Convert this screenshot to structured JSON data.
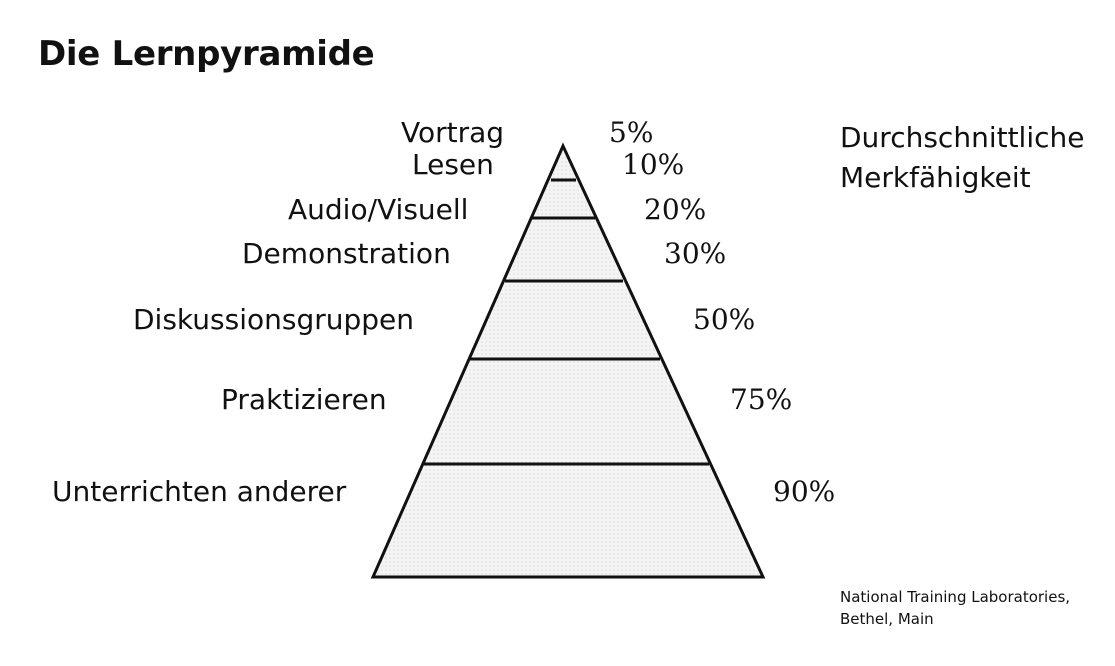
{
  "title": "Die Lernpyramide",
  "legend_heading": [
    "Durchschnittliche",
    "Merkfähigkeit"
  ],
  "source": [
    "National Training Laboratories,",
    "Bethel, Main"
  ],
  "levels": [
    {
      "label": "Vortrag",
      "value": "5%"
    },
    {
      "label": "Lesen",
      "value": "10%"
    },
    {
      "label": "Audio/Visuell",
      "value": "20%"
    },
    {
      "label": "Demonstration",
      "value": "30%"
    },
    {
      "label": "Diskussionsgruppen",
      "value": "50%"
    },
    {
      "label": "Praktizieren",
      "value": "75%"
    },
    {
      "label": "Unterrichten anderer",
      "value": "90%"
    }
  ]
}
